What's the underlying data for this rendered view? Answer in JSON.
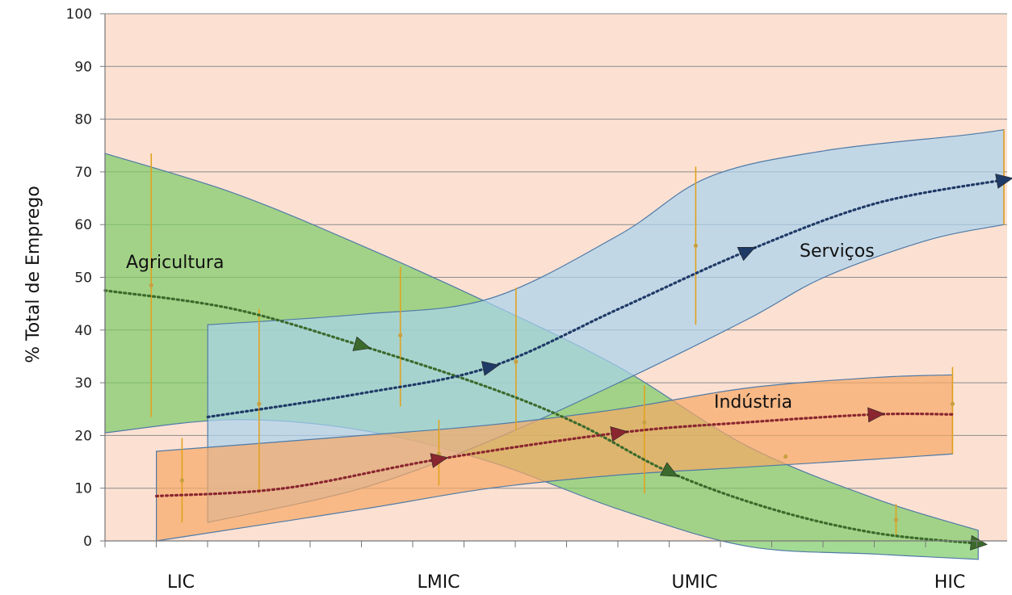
{
  "chart_data": {
    "type": "area",
    "title": "",
    "xlabel": "",
    "ylabel": "% Total de Emprego",
    "ylim": [
      0,
      100
    ],
    "yticks": [
      0,
      10,
      20,
      30,
      40,
      50,
      60,
      70,
      80,
      90,
      100
    ],
    "x_categories": [
      "LIC",
      "LMIC",
      "UMIC",
      "HIC"
    ],
    "grid": true,
    "colors": {
      "background": "#fce1d3",
      "agriculture": "#7ccc66",
      "services": "#a9d3ee",
      "industry": "#f7a865",
      "agriculture_arrow": "#3b6a2c",
      "services_arrow": "#1f3a66",
      "industry_arrow": "#8a2630",
      "error_bar": "#e1a21f"
    },
    "series": [
      {
        "name": "Agricultura",
        "band_upper": [
          [
            0,
            73.5
          ],
          [
            0.5,
            66
          ],
          [
            1,
            56
          ],
          [
            1.5,
            45
          ],
          [
            2,
            33
          ],
          [
            2.5,
            18
          ],
          [
            3,
            8
          ],
          [
            3.4,
            2
          ]
        ],
        "band_lower": [
          [
            0,
            20.5
          ],
          [
            0.5,
            23
          ],
          [
            1,
            21
          ],
          [
            1.5,
            15
          ],
          [
            2,
            6
          ],
          [
            2.5,
            -1
          ],
          [
            3,
            -2.5
          ],
          [
            3.4,
            -3.5
          ]
        ],
        "trend": [
          [
            0,
            47.5
          ],
          [
            0.5,
            44
          ],
          [
            1,
            37
          ],
          [
            1.5,
            29
          ],
          [
            1.85,
            22
          ],
          [
            2.2,
            13
          ],
          [
            2.6,
            6
          ],
          [
            3,
            1.5
          ],
          [
            3.4,
            -0.5
          ]
        ],
        "points": [
          [
            0.18,
            48.5
          ],
          [
            0.6,
            26
          ],
          [
            1.15,
            39
          ],
          [
            1.6,
            34
          ],
          [
            2.65,
            16
          ]
        ],
        "error_bars": [
          [
            0.18,
            23.5,
            73.5
          ],
          [
            0.6,
            9,
            44
          ],
          [
            1.15,
            25.5,
            52
          ],
          [
            1.6,
            21,
            48
          ]
        ]
      },
      {
        "name": "Serviços",
        "band_upper": [
          [
            0.4,
            41
          ],
          [
            1,
            43
          ],
          [
            1.5,
            46
          ],
          [
            2,
            58
          ],
          [
            2.35,
            69
          ],
          [
            2.8,
            74
          ],
          [
            3.35,
            77
          ],
          [
            3.5,
            78
          ]
        ],
        "band_lower": [
          [
            0.4,
            3.5
          ],
          [
            1,
            10
          ],
          [
            1.5,
            19
          ],
          [
            2,
            30
          ],
          [
            2.5,
            42
          ],
          [
            2.8,
            50
          ],
          [
            3.2,
            57
          ],
          [
            3.5,
            60
          ]
        ],
        "trend": [
          [
            0.4,
            23.5
          ],
          [
            1,
            28
          ],
          [
            1.5,
            33
          ],
          [
            2,
            44
          ],
          [
            2.5,
            55
          ],
          [
            3,
            64
          ],
          [
            3.5,
            68.5
          ]
        ],
        "points": [
          [
            2.3,
            56
          ],
          [
            3.5,
            68.5
          ]
        ],
        "error_bars": [
          [
            2.3,
            41,
            71
          ],
          [
            3.5,
            60,
            78
          ]
        ]
      },
      {
        "name": "Indústria",
        "band_upper": [
          [
            0.2,
            17
          ],
          [
            1,
            20
          ],
          [
            1.5,
            22
          ],
          [
            2,
            25
          ],
          [
            2.5,
            29
          ],
          [
            3,
            31
          ],
          [
            3.3,
            31.5
          ]
        ],
        "band_lower": [
          [
            0.2,
            0
          ],
          [
            1,
            6
          ],
          [
            1.5,
            10
          ],
          [
            2,
            12.5
          ],
          [
            2.5,
            14
          ],
          [
            3,
            15.5
          ],
          [
            3.3,
            16.5
          ]
        ],
        "trend": [
          [
            0.2,
            8.5
          ],
          [
            0.7,
            10
          ],
          [
            1.3,
            15.5
          ],
          [
            2,
            20.5
          ],
          [
            2.5,
            22.5
          ],
          [
            3,
            24
          ],
          [
            3.3,
            24
          ]
        ],
        "points": [
          [
            0.3,
            11.5
          ],
          [
            1.3,
            16.5
          ],
          [
            2.1,
            22.5
          ],
          [
            3.3,
            26
          ],
          [
            3.08,
            4
          ]
        ],
        "error_bars": [
          [
            0.3,
            3.5,
            19.5
          ],
          [
            1.3,
            10.5,
            23
          ],
          [
            2.1,
            9,
            29.5
          ],
          [
            3.3,
            16.5,
            33
          ],
          [
            3.08,
            1,
            7
          ]
        ]
      }
    ]
  }
}
